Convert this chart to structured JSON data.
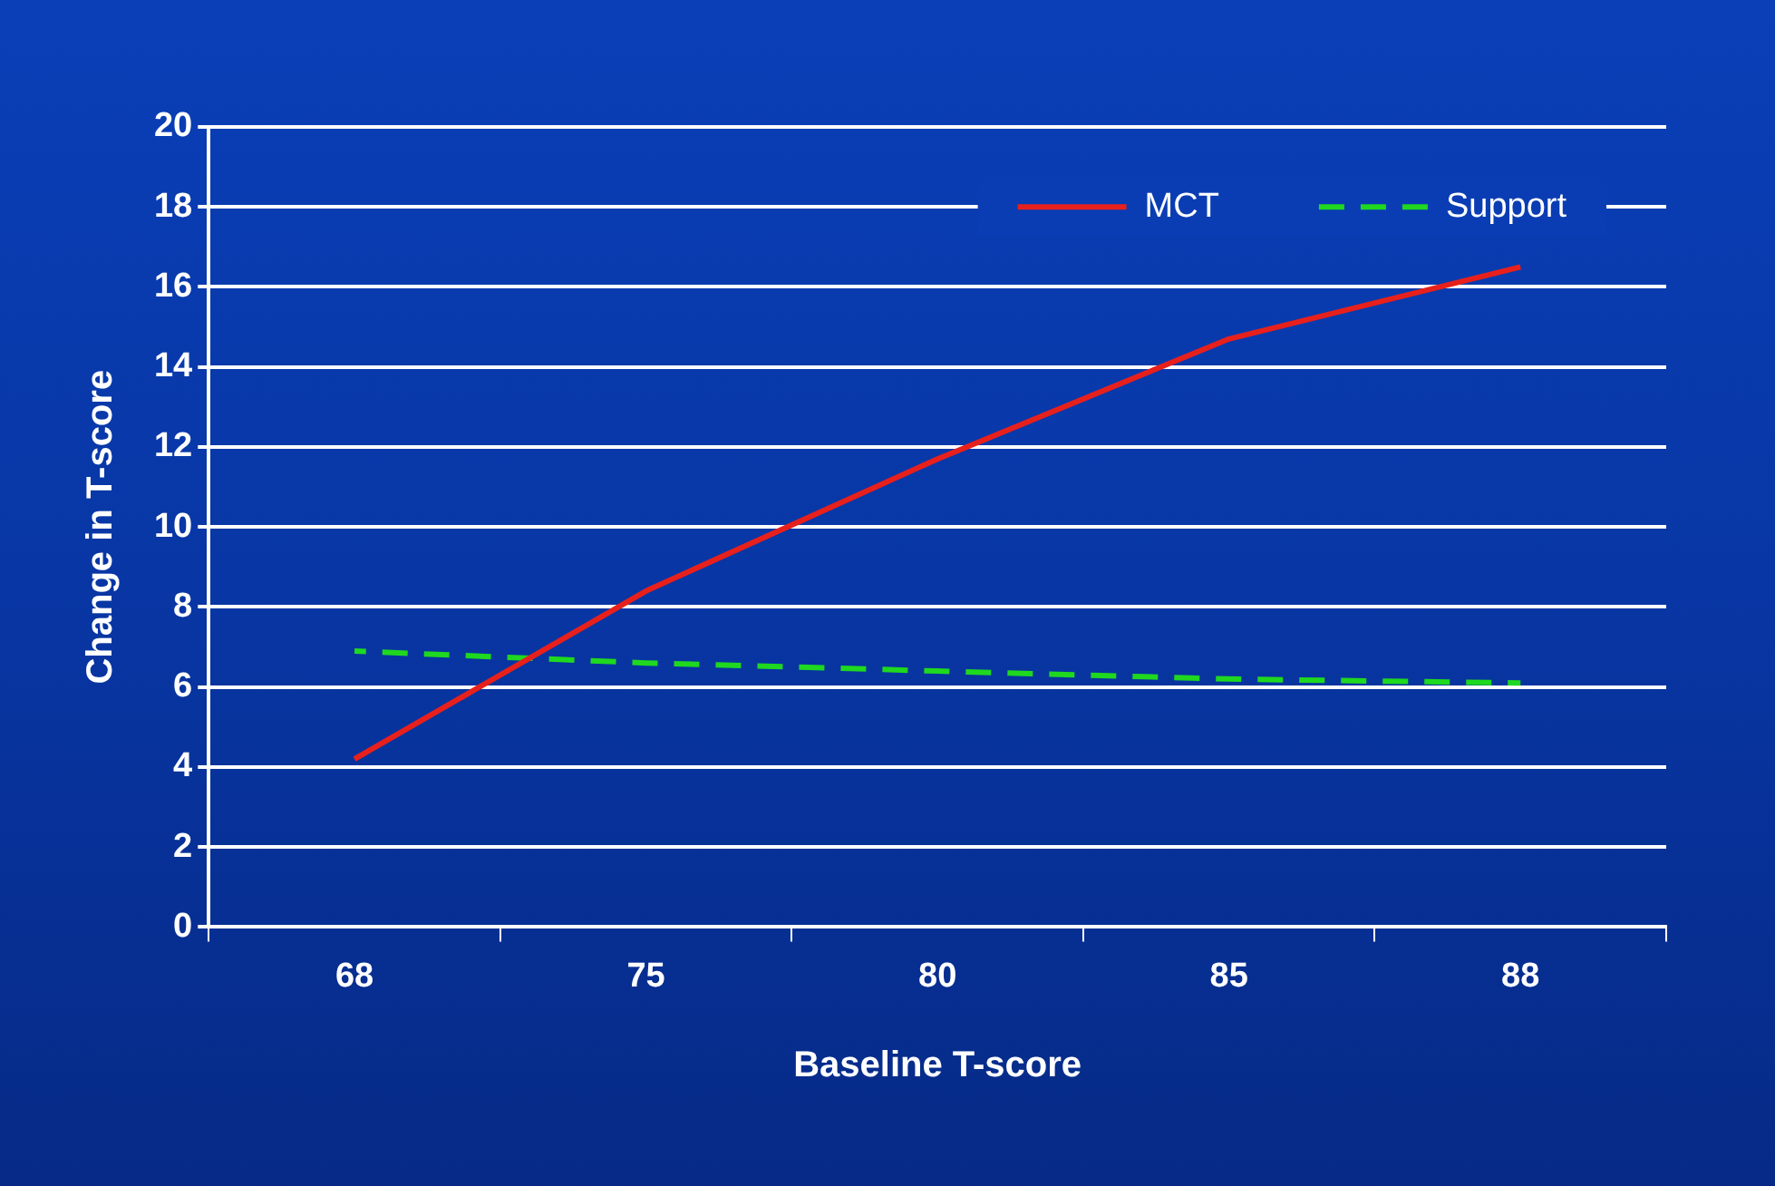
{
  "chart_data": {
    "type": "line",
    "xlabel": "Baseline T-score",
    "ylabel": "Change in T-score",
    "categories": [
      "68",
      "75",
      "80",
      "85",
      "88"
    ],
    "series": [
      {
        "name": "MCT",
        "color": "#e8201c",
        "values": [
          4.2,
          8.4,
          11.7,
          14.7,
          16.5
        ],
        "line_style": "solid"
      },
      {
        "name": "Support",
        "color": "#1fd81f",
        "values": [
          6.9,
          6.6,
          6.4,
          6.2,
          6.1
        ],
        "line_style": "dashed"
      }
    ],
    "ylim": [
      0,
      20
    ],
    "yticks": [
      0,
      2,
      4,
      6,
      8,
      10,
      12,
      14,
      16,
      18,
      20
    ],
    "grid": "y",
    "legend": "top right",
    "marker": "none"
  }
}
